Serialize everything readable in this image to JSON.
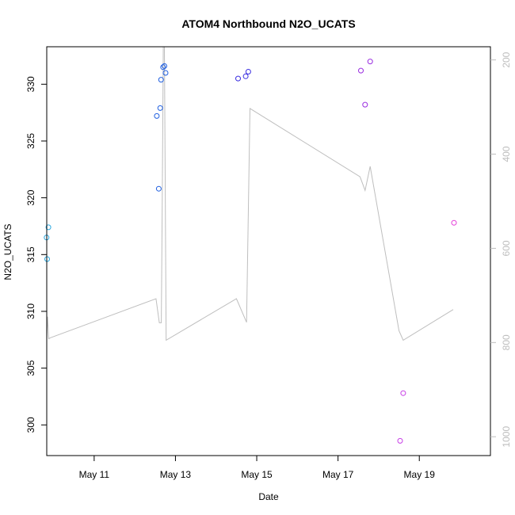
{
  "chart_data": {
    "type": "scatter",
    "title": "ATOM4 Northbound N2O_UCATS",
    "xlabel": "Date",
    "ylabel": "N2O_UCATS",
    "y2label": "",
    "x_range": [
      "2018-05-09T20:00",
      "2018-05-20T18:00"
    ],
    "y_range": [
      297.3,
      333.3
    ],
    "y2_range": [
      1040,
      172
    ],
    "y2_reversed": true,
    "x_ticks": [
      {
        "value": "2018-05-11",
        "label": "May 11"
      },
      {
        "value": "2018-05-13",
        "label": "May 13"
      },
      {
        "value": "2018-05-15",
        "label": "May 15"
      },
      {
        "value": "2018-05-17",
        "label": "May 17"
      },
      {
        "value": "2018-05-19",
        "label": "May 19"
      }
    ],
    "y_ticks": [
      300,
      305,
      310,
      315,
      320,
      325,
      330
    ],
    "y2_ticks": [
      200,
      400,
      600,
      800,
      1000
    ],
    "grid": false,
    "legend": "none",
    "colors": {
      "pressure_line": "#bebebe",
      "axis": "#000000",
      "right_axis": "#bdbdbd"
    },
    "series": [
      {
        "color": "#29a8e0",
        "points": [
          {
            "x": "2018-05-09T19:55",
            "y": 316.5
          },
          {
            "x": "2018-05-09T20:15",
            "y": 314.6
          },
          {
            "x": "2018-05-09T21:00",
            "y": 317.4
          }
        ]
      },
      {
        "color": "#1f5fe0",
        "points": [
          {
            "x": "2018-05-12T13:00",
            "y": 327.2
          },
          {
            "x": "2018-05-12T14:10",
            "y": 320.8
          },
          {
            "x": "2018-05-12T15:00",
            "y": 327.9
          },
          {
            "x": "2018-05-12T15:30",
            "y": 330.4
          },
          {
            "x": "2018-05-12T16:40",
            "y": 331.5
          },
          {
            "x": "2018-05-12T17:30",
            "y": 331.6
          },
          {
            "x": "2018-05-12T18:10",
            "y": 331.0
          }
        ]
      },
      {
        "color": "#3a2ee0",
        "points": [
          {
            "x": "2018-05-14T13:00",
            "y": 330.5
          },
          {
            "x": "2018-05-14T17:30",
            "y": 330.7
          },
          {
            "x": "2018-05-14T19:00",
            "y": 331.1
          }
        ]
      },
      {
        "color": "#9a2ee0",
        "points": [
          {
            "x": "2018-05-17T13:30",
            "y": 331.2
          },
          {
            "x": "2018-05-17T16:00",
            "y": 328.2
          },
          {
            "x": "2018-05-17T19:00",
            "y": 332.0
          }
        ]
      },
      {
        "color": "#c73ee6",
        "points": [
          {
            "x": "2018-05-18T12:40",
            "y": 298.6
          },
          {
            "x": "2018-05-18T14:30",
            "y": 302.8
          }
        ]
      },
      {
        "color": "#e43ad8",
        "points": [
          {
            "x": "2018-05-19T20:30",
            "y": 317.8
          }
        ]
      }
    ],
    "pressure_line": {
      "axis": "right",
      "color": "#bebebe",
      "points": [
        {
          "x": "2018-05-09T20:00",
          "y": 795
        },
        {
          "x": "2018-05-09T20:30",
          "y": 745
        },
        {
          "x": "2018-05-09T21:10",
          "y": 792
        },
        {
          "x": "2018-05-09T22:00",
          "y": 790
        },
        {
          "x": "2018-05-12T12:30",
          "y": 707
        },
        {
          "x": "2018-05-12T14:30",
          "y": 758
        },
        {
          "x": "2018-05-12T15:40",
          "y": 758
        },
        {
          "x": "2018-05-12T16:10",
          "y": 520
        },
        {
          "x": "2018-05-12T16:50",
          "y": 172
        },
        {
          "x": "2018-05-12T17:30",
          "y": 172
        },
        {
          "x": "2018-05-12T18:30",
          "y": 795
        },
        {
          "x": "2018-05-14T12:00",
          "y": 707
        },
        {
          "x": "2018-05-14T18:00",
          "y": 757
        },
        {
          "x": "2018-05-14T20:00",
          "y": 303
        },
        {
          "x": "2018-05-17T13:00",
          "y": 448
        },
        {
          "x": "2018-05-17T16:00",
          "y": 477
        },
        {
          "x": "2018-05-17T19:00",
          "y": 426
        },
        {
          "x": "2018-05-18T12:00",
          "y": 775
        },
        {
          "x": "2018-05-18T14:30",
          "y": 795
        },
        {
          "x": "2018-05-19T20:00",
          "y": 730
        }
      ]
    }
  }
}
